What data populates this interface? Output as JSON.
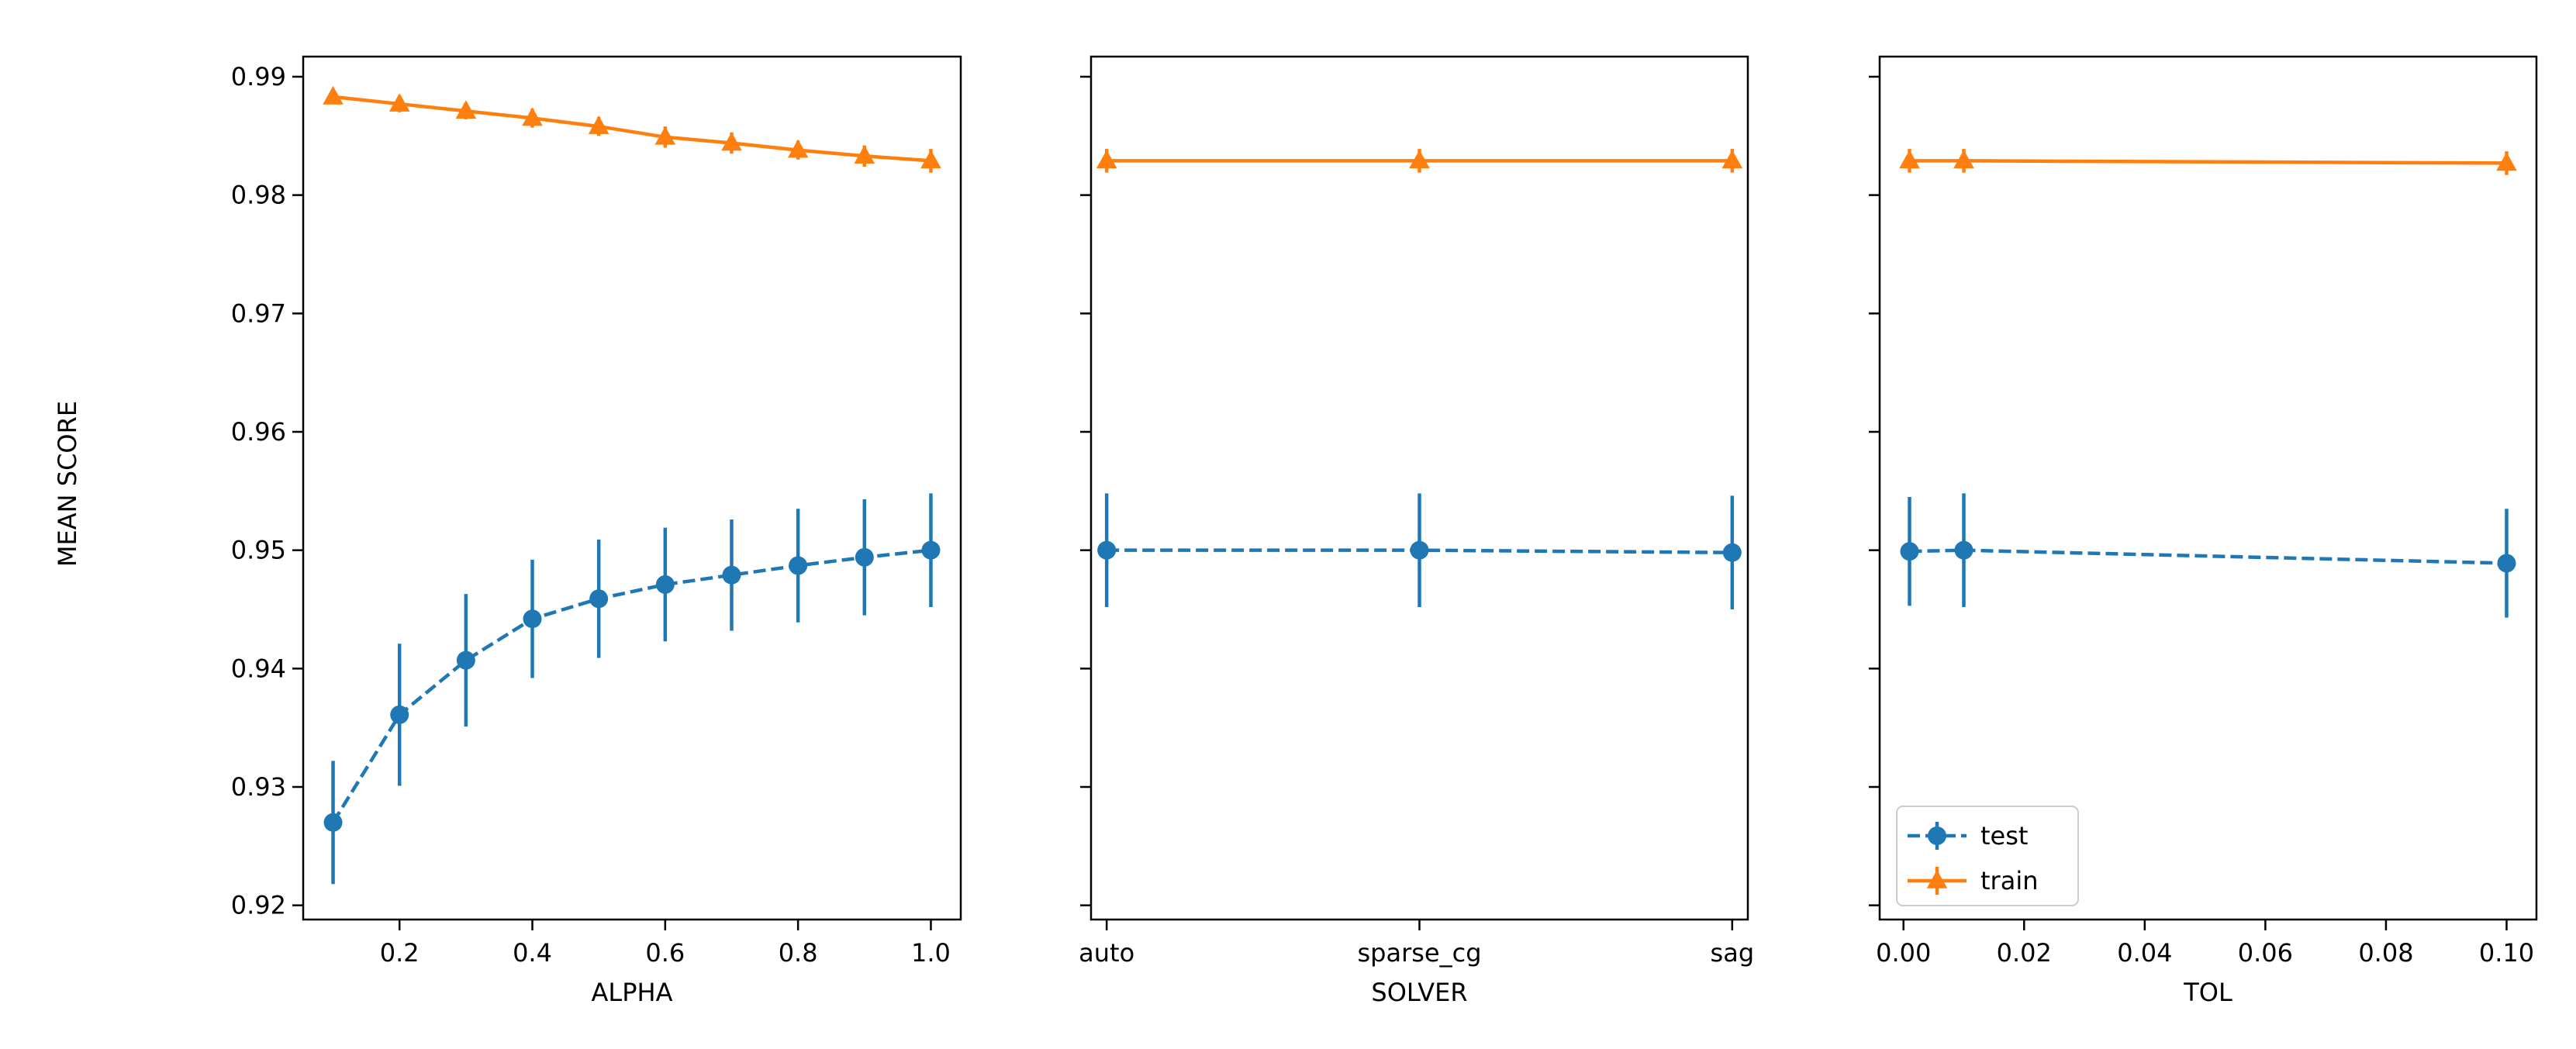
{
  "figure": {
    "ylabel": "MEAN SCORE"
  },
  "chart_data": [
    {
      "type": "line",
      "xlabel": "ALPHA",
      "ylabel": "MEAN SCORE",
      "x_type": "numeric",
      "x": [
        0.1,
        0.2,
        0.3,
        0.4,
        0.5,
        0.6,
        0.7,
        0.8,
        0.9,
        1.0
      ],
      "xlim": [
        0.055,
        1.045
      ],
      "xticks": [
        0.2,
        0.4,
        0.6,
        0.8,
        1.0
      ],
      "xtick_labels": [
        "0.2",
        "0.4",
        "0.6",
        "0.8",
        "1.0"
      ],
      "ylim": [
        0.9188,
        0.9917
      ],
      "yticks": [
        0.92,
        0.93,
        0.94,
        0.95,
        0.96,
        0.97,
        0.98,
        0.99
      ],
      "ytick_labels": [
        "0.92",
        "0.93",
        "0.94",
        "0.95",
        "0.96",
        "0.97",
        "0.98",
        "0.99"
      ],
      "series": [
        {
          "name": "test",
          "color": "#1f77b4",
          "style": "dashed",
          "marker": "circle",
          "values": [
            0.927,
            0.9361,
            0.9407,
            0.9442,
            0.9459,
            0.9471,
            0.9479,
            0.9487,
            0.9494,
            0.95
          ],
          "errors": [
            0.0052,
            0.006,
            0.0056,
            0.005,
            0.005,
            0.0048,
            0.0047,
            0.0048,
            0.0049,
            0.0048
          ]
        },
        {
          "name": "train",
          "color": "#ff7f0e",
          "style": "solid",
          "marker": "triangle",
          "values": [
            0.9883,
            0.9877,
            0.9871,
            0.9865,
            0.9858,
            0.9849,
            0.9844,
            0.9838,
            0.9833,
            0.9829
          ],
          "errors": [
            0.0006,
            0.0007,
            0.0007,
            0.0008,
            0.0008,
            0.0009,
            0.0009,
            0.0008,
            0.0009,
            0.001
          ]
        }
      ]
    },
    {
      "type": "line",
      "xlabel": "SOLVER",
      "ylabel": "",
      "x_type": "categorical",
      "categories": [
        "auto",
        "sparse_cg",
        "sag"
      ],
      "xlim": [
        -0.05,
        2.05
      ],
      "ylim": [
        0.9188,
        0.9917
      ],
      "yticks": [
        0.92,
        0.93,
        0.94,
        0.95,
        0.96,
        0.97,
        0.98,
        0.99
      ],
      "series": [
        {
          "name": "test",
          "color": "#1f77b4",
          "style": "dashed",
          "marker": "circle",
          "values": [
            0.95,
            0.95,
            0.9498
          ],
          "errors": [
            0.0048,
            0.0048,
            0.0048
          ]
        },
        {
          "name": "train",
          "color": "#ff7f0e",
          "style": "solid",
          "marker": "triangle",
          "values": [
            0.9829,
            0.9829,
            0.9829
          ],
          "errors": [
            0.001,
            0.001,
            0.001
          ]
        }
      ]
    },
    {
      "type": "line",
      "xlabel": "TOL",
      "ylabel": "",
      "x_type": "numeric",
      "x": [
        0.001,
        0.01,
        0.1
      ],
      "xlim": [
        -0.00395,
        0.10495
      ],
      "xticks": [
        0.0,
        0.02,
        0.04,
        0.06,
        0.08,
        0.1
      ],
      "xtick_labels": [
        "0.00",
        "0.02",
        "0.04",
        "0.06",
        "0.08",
        "0.10"
      ],
      "ylim": [
        0.9188,
        0.9917
      ],
      "yticks": [
        0.92,
        0.93,
        0.94,
        0.95,
        0.96,
        0.97,
        0.98,
        0.99
      ],
      "legend": {
        "location": "lower-left",
        "entries": [
          "test",
          "train"
        ]
      },
      "series": [
        {
          "name": "test",
          "color": "#1f77b4",
          "style": "dashed",
          "marker": "circle",
          "values": [
            0.9499,
            0.95,
            0.9489
          ],
          "errors": [
            0.0046,
            0.0048,
            0.0046
          ]
        },
        {
          "name": "train",
          "color": "#ff7f0e",
          "style": "solid",
          "marker": "triangle",
          "values": [
            0.9829,
            0.9829,
            0.9827
          ],
          "errors": [
            0.001,
            0.001,
            0.001
          ]
        }
      ]
    }
  ]
}
